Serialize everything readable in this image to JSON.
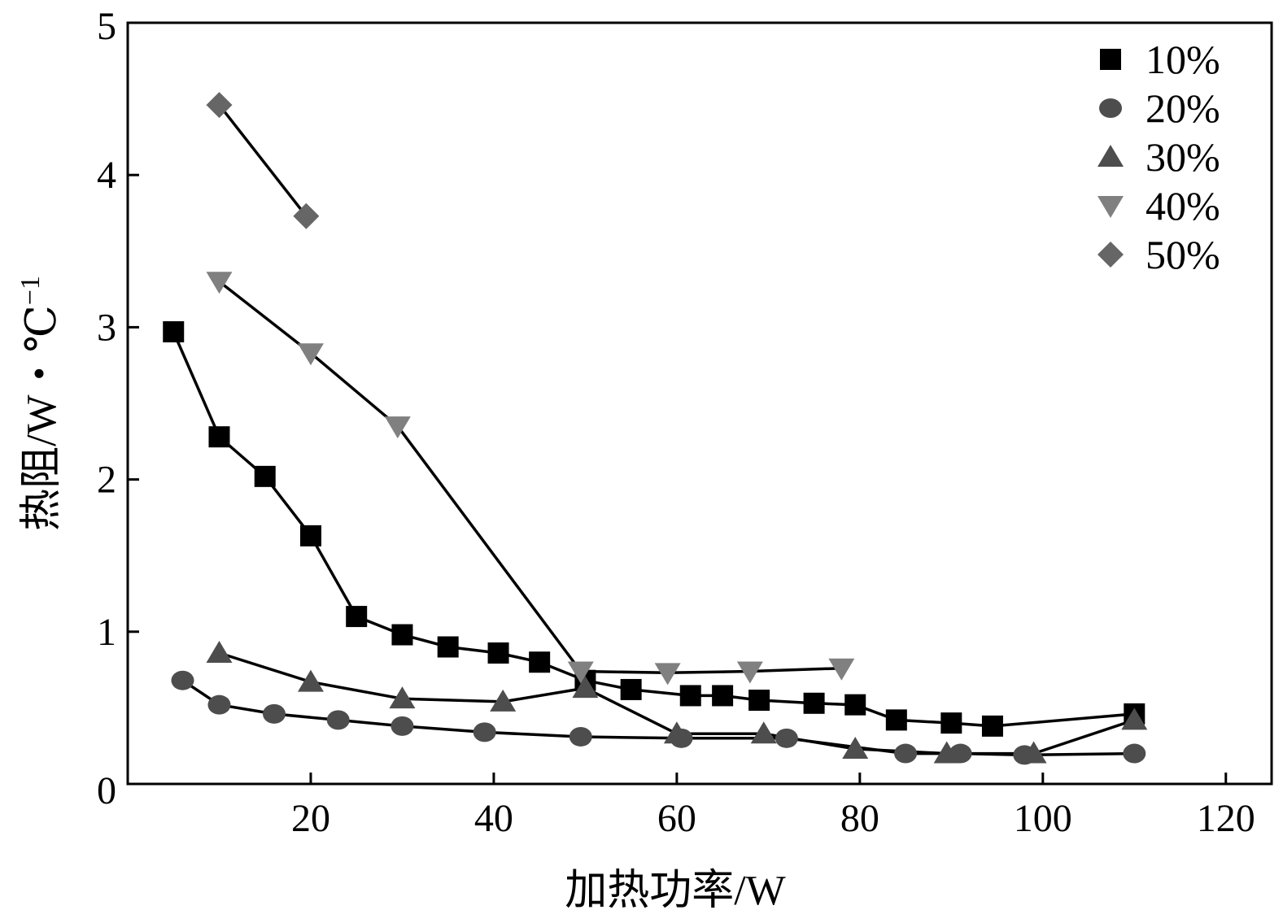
{
  "chart_data": {
    "type": "line",
    "title": "",
    "xlabel": "加热功率/W",
    "ylabel": "热阻/W・℃",
    "ylabel_superscript": "−1",
    "xlim": [
      0,
      125
    ],
    "ylim": [
      0,
      5
    ],
    "xticks": [
      20,
      40,
      60,
      80,
      100,
      120
    ],
    "yticks": [
      0,
      1,
      2,
      3,
      4,
      5
    ],
    "grid": false,
    "legend_position": "top-right",
    "series": [
      {
        "name": "10%",
        "marker": "square",
        "color": "#000000",
        "x": [
          5,
          10,
          15,
          20,
          25,
          30,
          35,
          40.5,
          45,
          50,
          55,
          61.5,
          65,
          69,
          75,
          79.5,
          84,
          90,
          94.5,
          110
        ],
        "y": [
          2.97,
          2.28,
          2.02,
          1.63,
          1.1,
          0.98,
          0.9,
          0.86,
          0.8,
          0.68,
          0.62,
          0.58,
          0.58,
          0.55,
          0.53,
          0.52,
          0.42,
          0.4,
          0.38,
          0.46
        ]
      },
      {
        "name": "20%",
        "marker": "circle",
        "color": "#4d4d4d",
        "x": [
          6,
          10,
          16,
          23,
          30,
          39,
          49.5,
          60.5,
          72,
          85,
          91,
          98,
          110
        ],
        "y": [
          0.68,
          0.52,
          0.46,
          0.42,
          0.38,
          0.34,
          0.31,
          0.3,
          0.3,
          0.2,
          0.2,
          0.19,
          0.2
        ]
      },
      {
        "name": "30%",
        "marker": "triangle-up",
        "color": "#4d4d4d",
        "x": [
          10,
          20,
          30,
          41,
          50,
          60,
          69.5,
          79.5,
          89.5,
          99,
          110
        ],
        "y": [
          0.86,
          0.67,
          0.56,
          0.54,
          0.63,
          0.33,
          0.33,
          0.23,
          0.2,
          0.2,
          0.42
        ]
      },
      {
        "name": "40%",
        "marker": "triangle-down",
        "color": "#808080",
        "x": [
          10,
          20,
          29.5,
          49.5,
          59,
          68,
          78
        ],
        "y": [
          3.3,
          2.83,
          2.35,
          0.74,
          0.73,
          0.74,
          0.76
        ]
      },
      {
        "name": "50%",
        "marker": "diamond",
        "color": "#666666",
        "x": [
          10,
          19.5
        ],
        "y": [
          4.46,
          3.73
        ]
      }
    ]
  }
}
